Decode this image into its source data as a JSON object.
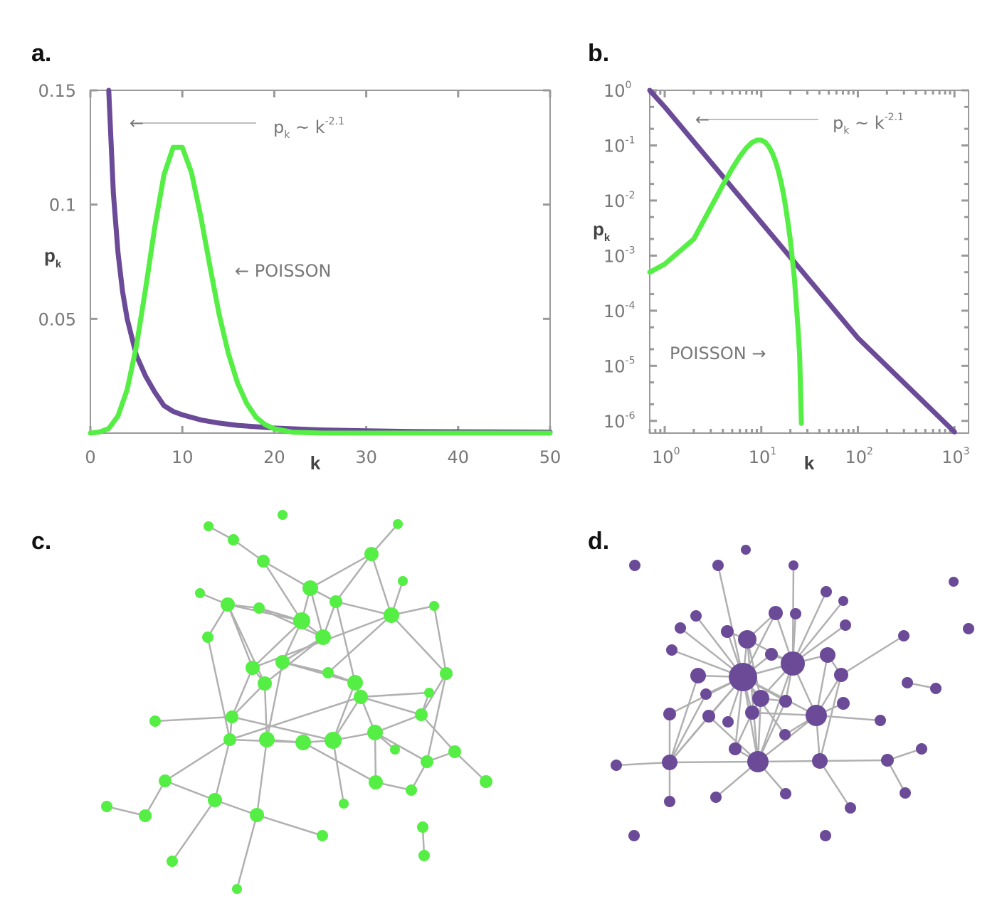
{
  "panels": {
    "a": "a.",
    "b": "b.",
    "c": "c.",
    "d": "d."
  },
  "colors": {
    "poisson": "#55ee44",
    "power_law": "#6b4a98",
    "axis": "#999999",
    "edge": "#b0b0b0"
  },
  "chart_data": [
    {
      "id": "a",
      "type": "line",
      "xlabel": "k",
      "ylabel": "p",
      "ylabel_sub": "k",
      "xlim": [
        0,
        50
      ],
      "ylim": [
        0,
        0.15
      ],
      "x_ticks": [
        "0",
        "10",
        "20",
        "30",
        "40",
        "50"
      ],
      "x_tick_values": [
        0,
        10,
        20,
        30,
        40,
        50
      ],
      "y_ticks": [
        "0.05",
        "0.1",
        "0.15"
      ],
      "y_tick_values": [
        0.05,
        0.1,
        0.15
      ],
      "series": [
        {
          "key": "power_law",
          "x": [
            2,
            2.5,
            3,
            3.5,
            4,
            5,
            6,
            7,
            8,
            9,
            10,
            12,
            14,
            16,
            18,
            20,
            25,
            30,
            35,
            40,
            45,
            50
          ],
          "y": [
            0.15,
            0.105,
            0.079,
            0.062,
            0.05,
            0.034,
            0.025,
            0.018,
            0.012,
            0.0095,
            0.008,
            0.0058,
            0.0044,
            0.0034,
            0.0028,
            0.0022,
            0.0014,
            0.001,
            0.0007,
            0.0006,
            0.0005,
            0.0004
          ]
        },
        {
          "key": "poisson",
          "x": [
            0,
            1,
            2,
            3,
            4,
            5,
            6,
            7,
            8,
            9,
            10,
            11,
            12,
            13,
            14,
            15,
            16,
            17,
            18,
            19,
            20,
            22,
            25,
            30,
            40,
            50
          ],
          "y": [
            0,
            0.0005,
            0.002,
            0.0075,
            0.019,
            0.038,
            0.063,
            0.09,
            0.113,
            0.125,
            0.125,
            0.114,
            0.095,
            0.073,
            0.052,
            0.035,
            0.022,
            0.013,
            0.007,
            0.0037,
            0.0019,
            0.0004,
            2e-05,
            0,
            0,
            0
          ]
        }
      ],
      "annotations": {
        "power_law": {
          "base": "p",
          "sub": "k",
          "mid": " ~ k",
          "sup": "-2.1",
          "arrow": "←"
        },
        "poisson": {
          "text": "POISSON",
          "arrow": "←"
        }
      }
    },
    {
      "id": "b",
      "type": "line",
      "scale": "log-log",
      "xlabel": "k",
      "ylabel": "p",
      "ylabel_sub": "k",
      "xlim": [
        0.7,
        1400
      ],
      "ylim": [
        6e-07,
        1
      ],
      "x_ticks": [
        {
          "base": "10",
          "exp": "0",
          "value": 1
        },
        {
          "base": "10",
          "exp": "1",
          "value": 10
        },
        {
          "base": "10",
          "exp": "2",
          "value": 100
        },
        {
          "base": "10",
          "exp": "3",
          "value": 1000
        }
      ],
      "y_ticks": [
        {
          "base": "10",
          "exp": "0",
          "value": 1
        },
        {
          "base": "10",
          "exp": "-1",
          "value": 0.1
        },
        {
          "base": "10",
          "exp": "-2",
          "value": 0.01
        },
        {
          "base": "10",
          "exp": "-3",
          "value": 0.001
        },
        {
          "base": "10",
          "exp": "-4",
          "value": 0.0001
        },
        {
          "base": "10",
          "exp": "-5",
          "value": 1e-05
        },
        {
          "base": "10",
          "exp": "-6",
          "value": 1e-06
        }
      ],
      "series": [
        {
          "key": "power_law",
          "x": [
            0.7,
            1,
            10,
            100,
            1000
          ],
          "y": [
            1.0,
            0.5,
            0.004,
            3.2e-05,
            6.3e-07
          ]
        },
        {
          "key": "poisson",
          "x": [
            0.7,
            1,
            2,
            3,
            4,
            5,
            6,
            7,
            8,
            9,
            10,
            11,
            12,
            13,
            14,
            15,
            16,
            17,
            18,
            19,
            20,
            22,
            24,
            25,
            26
          ],
          "y": [
            0.0005,
            0.0007,
            0.002,
            0.0075,
            0.019,
            0.038,
            0.063,
            0.09,
            0.113,
            0.125,
            0.125,
            0.114,
            0.095,
            0.073,
            0.052,
            0.035,
            0.022,
            0.013,
            0.007,
            0.0037,
            0.0019,
            0.0004,
            5e-05,
            1.5e-05,
            9e-07
          ]
        }
      ],
      "annotations": {
        "power_law": {
          "base": "p",
          "sub": "k",
          "mid": " ~ k",
          "sup": "-2.1",
          "arrow": "←"
        },
        "poisson": {
          "text": "POISSON",
          "arrow": "→"
        }
      }
    }
  ]
}
